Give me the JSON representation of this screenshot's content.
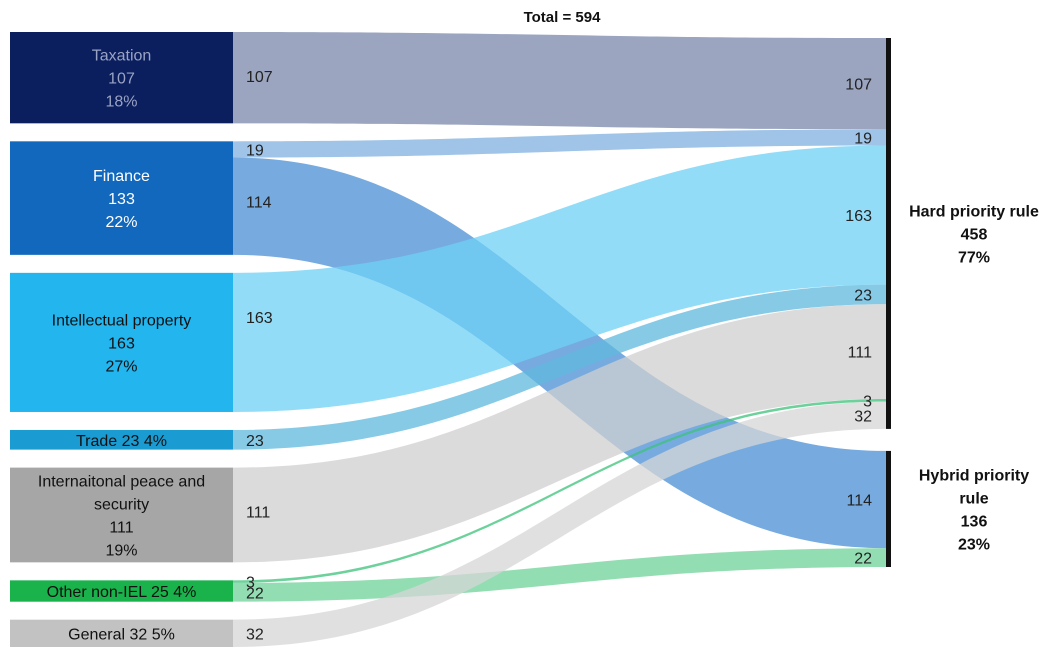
{
  "chart_data": {
    "type": "sankey",
    "title": "Total = 594",
    "sources": [
      {
        "lines": [
          "Taxation",
          "107",
          "18%"
        ],
        "color": "#0b1f5e",
        "text_color": "#9aa3c4"
      },
      {
        "lines": [
          "Finance",
          "133",
          "22%"
        ],
        "color": "#1168bd",
        "text_color": "#ffffff"
      },
      {
        "lines": [
          "Intellectual property",
          "163",
          "27%"
        ],
        "color": "#22b5ee",
        "text_color": "#111111"
      },
      {
        "lines": [
          "Trade 23  4%"
        ],
        "color": "#1a9bd1",
        "text_color": "#111111"
      },
      {
        "lines": [
          "Internaitonal peace and",
          "security",
          "111",
          "19%"
        ],
        "color": "#a6a6a6",
        "text_color": "#111111"
      },
      {
        "lines": [
          "Other non-IEL  25  4%"
        ],
        "color": "#19b24b",
        "text_color": "#111111"
      },
      {
        "lines": [
          "General 32  5%"
        ],
        "color": "#c2c2c2",
        "text_color": "#111111"
      }
    ],
    "targets": [
      {
        "lines": [
          "Hard priority rule",
          "458",
          "77%"
        ]
      },
      {
        "lines": [
          "Hybrid priority",
          "rule",
          "136",
          "23%"
        ]
      }
    ],
    "flows": [
      {
        "source": 0,
        "target": 0,
        "value": 107,
        "label": "107",
        "color": "#7a87ab"
      },
      {
        "source": 1,
        "target": 0,
        "value": 19,
        "label": "19",
        "color": "#7fb0e0"
      },
      {
        "source": 1,
        "target": 1,
        "value": 114,
        "label": "114",
        "color": "#4a8fd6"
      },
      {
        "source": 2,
        "target": 0,
        "value": 163,
        "label": "163",
        "color": "#6dd0f6"
      },
      {
        "source": 3,
        "target": 0,
        "value": 23,
        "label": "23",
        "color": "#5fb8dd"
      },
      {
        "source": 4,
        "target": 0,
        "value": 111,
        "label": "111",
        "color": "#cfcfcf"
      },
      {
        "source": 5,
        "target": 0,
        "value": 3,
        "label": "3",
        "color": "#3cc27a"
      },
      {
        "source": 5,
        "target": 1,
        "value": 22,
        "label": "22",
        "color": "#6fd19a"
      },
      {
        "source": 6,
        "target": 0,
        "value": 32,
        "label": "32",
        "color": "#d6d6d6"
      }
    ]
  }
}
